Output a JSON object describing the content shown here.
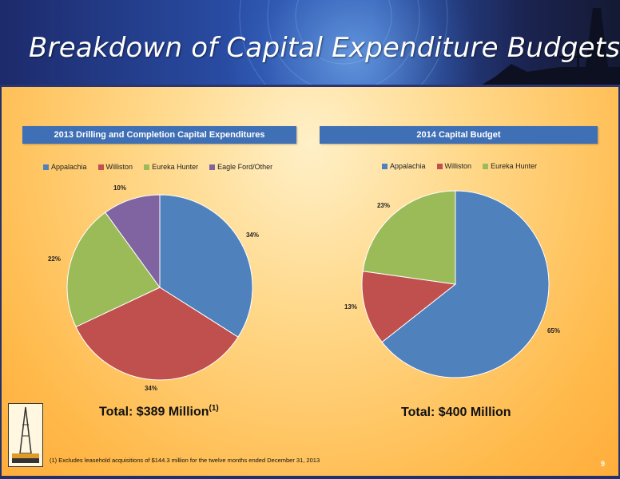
{
  "title": "Breakdown of Capital Expenditure Budgets",
  "colors": {
    "appalachia": "#4f81bd",
    "williston": "#c0504d",
    "eureka": "#9bbb59",
    "eagle": "#8064a2"
  },
  "chart_data": [
    {
      "type": "pie",
      "title": "2013 Drilling and Completion Capital Expenditures",
      "legend": [
        "Appalachia",
        "Williston",
        "Eureka Hunter",
        "Eagle Ford/Other"
      ],
      "legend_position": "top",
      "values": [
        34,
        34,
        22,
        10
      ],
      "labels": [
        "34%",
        "34%",
        "22%",
        "10%"
      ],
      "total_label": "Total: $389 Million",
      "total_sup": "(1)"
    },
    {
      "type": "pie",
      "title": "2014 Capital Budget",
      "legend": [
        "Appalachia",
        "Williston",
        "Eureka Hunter"
      ],
      "legend_position": "top",
      "values": [
        65,
        13,
        23
      ],
      "labels": [
        "65%",
        "13%",
        "23%"
      ],
      "total_label": "Total: $400 Million"
    }
  ],
  "footnote": "(1) Excludes leasehold acquisitions of $144.3 million for the twelve months ended December 31, 2013",
  "page_number": "9"
}
